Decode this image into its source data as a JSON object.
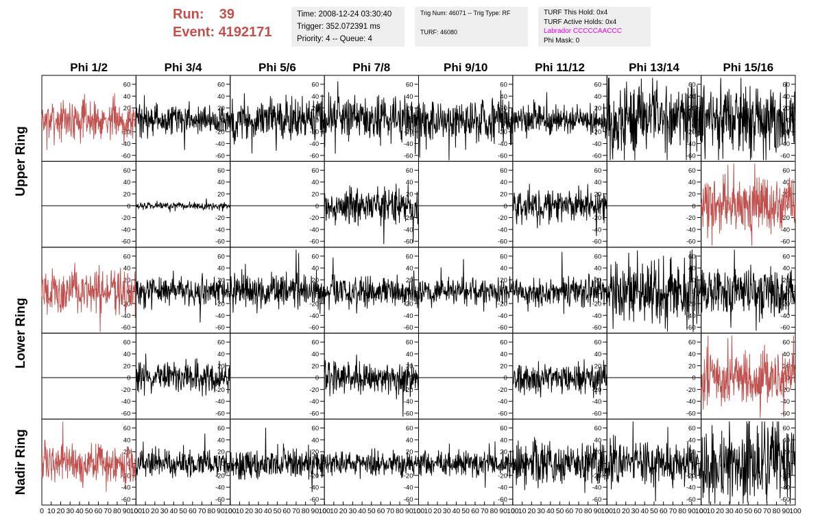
{
  "header": {
    "run_label": "Run:",
    "run_value": "39",
    "event_label": "Event:",
    "event_value": "4192171",
    "box1": [
      "Time: 2008-12-24 03:30:40",
      "Trigger: 352.072391 ms",
      "Priority: 4 -- Queue: 4"
    ],
    "box2": [
      "Trig Num: 46071 -- Trig Type: RF",
      "",
      "TURF: 46080"
    ],
    "box3": [
      "TURF This Hold: 0x4",
      "TURF Active Holds: 0x4",
      "Labrador CCCCCAACCC",
      "Phi Mask: 0"
    ]
  },
  "colors": {
    "accent_red": "#c0504d",
    "trace_black": "#000000",
    "magenta": "#e600e6"
  },
  "chart_data": {
    "type": "line",
    "columns": [
      "Phi 1/2",
      "Phi 3/4",
      "Phi 5/6",
      "Phi 7/8",
      "Phi 9/10",
      "Phi 11/12",
      "Phi 13/14",
      "Phi 15/16"
    ],
    "row_groups": [
      "Upper Ring",
      "Lower Ring",
      "Nadir Ring"
    ],
    "panel_rows": 5,
    "xlim": [
      0,
      100
    ],
    "ylim": [
      -70,
      75
    ],
    "y_ticks": [
      -60,
      -40,
      -20,
      0,
      20,
      40,
      60
    ],
    "x_ticks": [
      0,
      10,
      20,
      30,
      40,
      50,
      60,
      70,
      80,
      90,
      100
    ],
    "x_tick_labels": [
      "0",
      "10",
      "20",
      "30",
      "40",
      "50",
      "60",
      "70",
      "80",
      "90",
      "100"
    ],
    "grid": false,
    "panels": [
      [
        {
          "amp": 18,
          "color": "red"
        },
        {
          "amp": 14,
          "color": "black"
        },
        {
          "amp": 20,
          "color": "black"
        },
        {
          "amp": 20,
          "color": "black"
        },
        {
          "amp": 22,
          "color": "black"
        },
        {
          "amp": 14,
          "color": "black"
        },
        {
          "amp": 32,
          "color": "black"
        },
        {
          "amp": 32,
          "color": "black"
        }
      ],
      [
        {
          "amp": 0,
          "color": "black"
        },
        {
          "amp": 3,
          "color": "black"
        },
        {
          "amp": 0,
          "color": "black"
        },
        {
          "amp": 16,
          "color": "black"
        },
        {
          "amp": 0,
          "color": "black"
        },
        {
          "amp": 15,
          "color": "black"
        },
        {
          "amp": 0,
          "color": "black"
        },
        {
          "amp": 24,
          "color": "red"
        }
      ],
      [
        {
          "amp": 20,
          "color": "red"
        },
        {
          "amp": 14,
          "color": "black"
        },
        {
          "amp": 16,
          "color": "black"
        },
        {
          "amp": 15,
          "color": "black"
        },
        {
          "amp": 12,
          "color": "black"
        },
        {
          "amp": 14,
          "color": "black"
        },
        {
          "amp": 30,
          "color": "black"
        },
        {
          "amp": 24,
          "color": "black"
        }
      ],
      [
        {
          "amp": 0,
          "color": "black"
        },
        {
          "amp": 14,
          "color": "black"
        },
        {
          "amp": 0,
          "color": "black"
        },
        {
          "amp": 15,
          "color": "black"
        },
        {
          "amp": 0,
          "color": "black"
        },
        {
          "amp": 14,
          "color": "black"
        },
        {
          "amp": 0,
          "color": "black"
        },
        {
          "amp": 24,
          "color": "red"
        }
      ],
      [
        {
          "amp": 18,
          "color": "red"
        },
        {
          "amp": 12,
          "color": "black"
        },
        {
          "amp": 14,
          "color": "black"
        },
        {
          "amp": 12,
          "color": "black"
        },
        {
          "amp": 12,
          "color": "black"
        },
        {
          "amp": 20,
          "color": "black"
        },
        {
          "amp": 20,
          "color": "black"
        },
        {
          "amp": 36,
          "color": "black"
        }
      ]
    ]
  }
}
